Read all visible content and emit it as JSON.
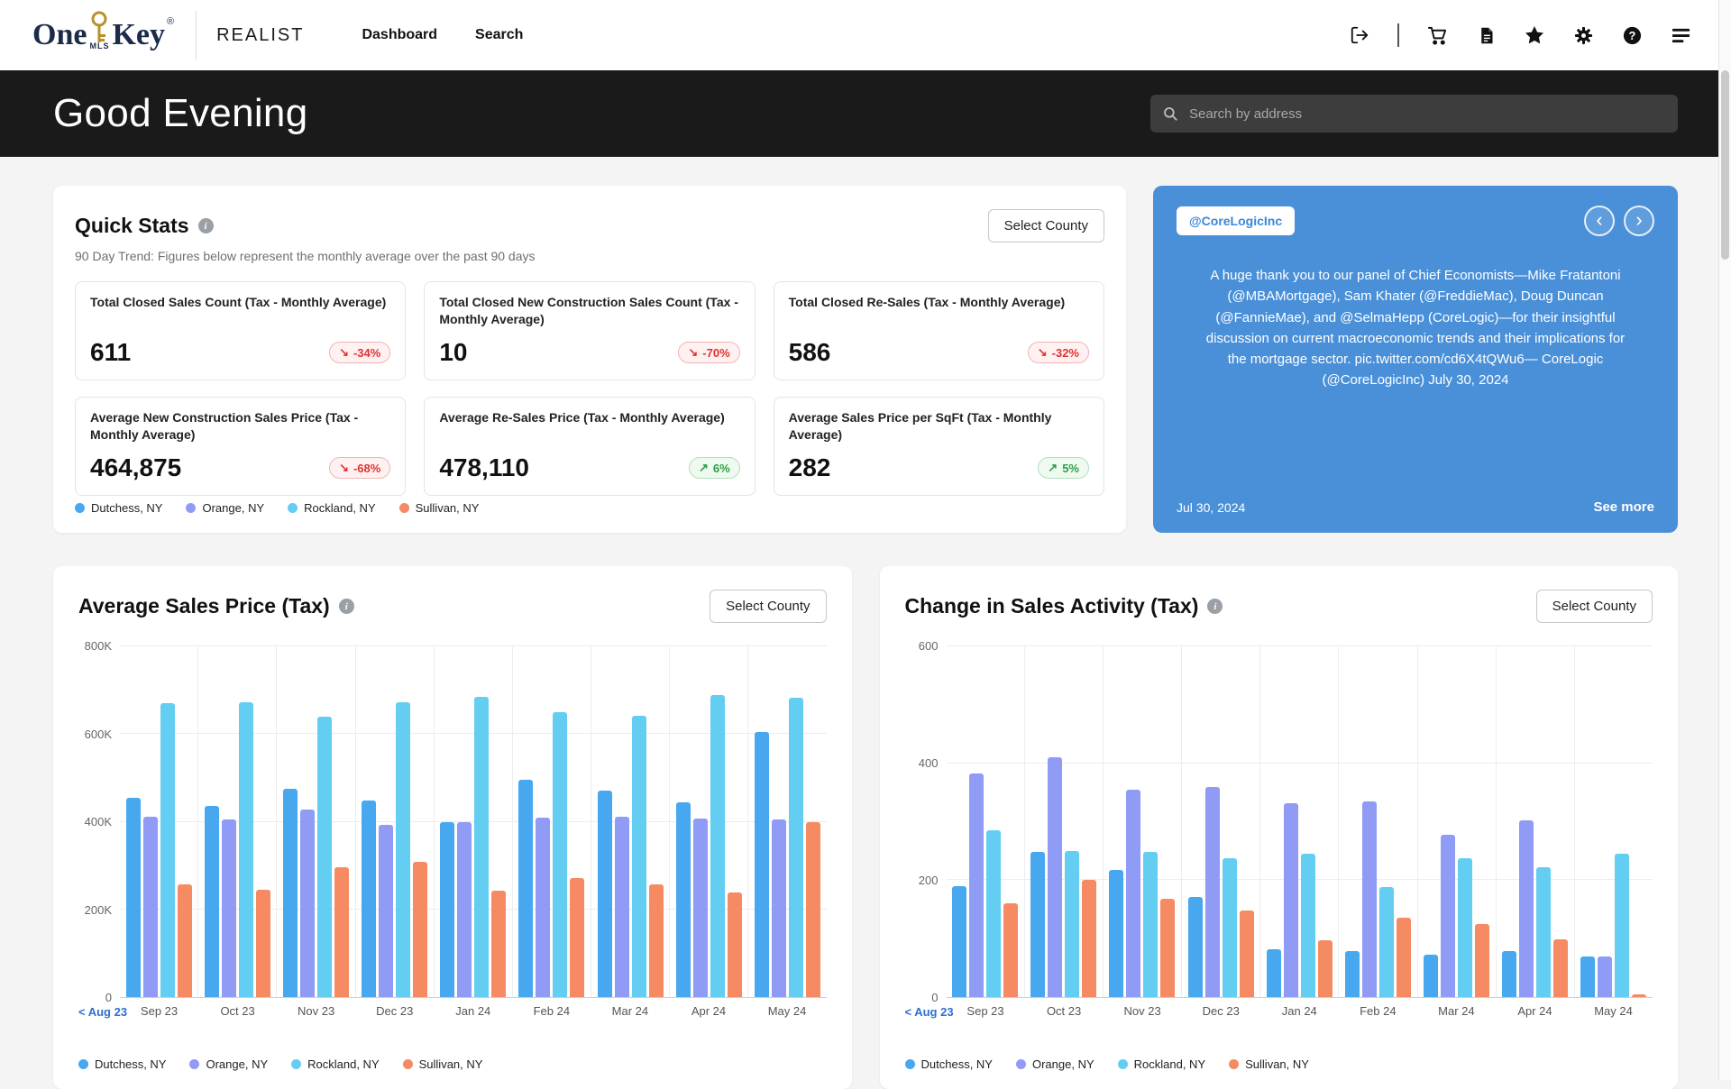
{
  "navbar": {
    "brand": {
      "one": "One",
      "key": "Key",
      "mls": "MLS",
      "registered": "®"
    },
    "app_name": "REALIST",
    "links": [
      {
        "label": "Dashboard"
      },
      {
        "label": "Search"
      }
    ],
    "icons": [
      "logout",
      "cart",
      "document",
      "star",
      "gear",
      "help",
      "reports"
    ]
  },
  "header": {
    "greeting": "Good Evening",
    "search_placeholder": "Search by address"
  },
  "labels": {
    "select_county": "Select County",
    "prev_link": "< Aug 23",
    "see_more": "See more"
  },
  "counties": [
    {
      "name": "Dutchess, NY",
      "color": "#47a8f0"
    },
    {
      "name": "Orange, NY",
      "color": "#8f9bf5"
    },
    {
      "name": "Rockland, NY",
      "color": "#63cdf2"
    },
    {
      "name": "Sullivan, NY",
      "color": "#f58a63"
    }
  ],
  "quick_stats": {
    "title": "Quick Stats",
    "subtitle": "90 Day Trend: Figures below represent the monthly average over the past 90 days",
    "cards": [
      {
        "label": "Total Closed Sales Count (Tax - Monthly Average)",
        "value": "611",
        "change": "-34%",
        "direction": "down"
      },
      {
        "label": "Total Closed New Construction Sales Count (Tax - Monthly Average)",
        "value": "10",
        "change": "-70%",
        "direction": "down"
      },
      {
        "label": "Total Closed Re-Sales (Tax - Monthly Average)",
        "value": "586",
        "change": "-32%",
        "direction": "down"
      },
      {
        "label": "Average New Construction Sales Price (Tax - Monthly Average)",
        "value": "464,875",
        "change": "-68%",
        "direction": "down"
      },
      {
        "label": "Average Re-Sales Price (Tax - Monthly Average)",
        "value": "478,110",
        "change": "6%",
        "direction": "up"
      },
      {
        "label": "Average Sales Price per SqFt (Tax - Monthly Average)",
        "value": "282",
        "change": "5%",
        "direction": "up"
      }
    ]
  },
  "tweet": {
    "handle": "@CoreLogicInc",
    "text": "A huge thank you to our panel of Chief Economists—Mike Fratantoni (@MBAMortgage), Sam Khater (@FreddieMac), Doug Duncan (@FannieMae), and @SelmaHepp (CoreLogic)—for their insightful discussion on current macroeconomic trends and their implications for the mortgage sector. pic.twitter.com/cd6X4tQWu6— CoreLogic (@CoreLogicInc) July 30, 2024",
    "date": "Jul 30, 2024",
    "bg_color": "#4a90d9"
  },
  "chart_data": [
    {
      "type": "bar",
      "title": "Average Sales Price (Tax)",
      "categories": [
        "Sep 23",
        "Oct 23",
        "Nov 23",
        "Dec 23",
        "Jan 24",
        "Feb 24",
        "Mar 24",
        "Apr 24",
        "May 24"
      ],
      "series": [
        {
          "name": "Dutchess, NY",
          "values": [
            455000,
            435000,
            475000,
            448000,
            398000,
            495000,
            472000,
            445000,
            605000
          ]
        },
        {
          "name": "Orange, NY",
          "values": [
            412000,
            405000,
            428000,
            392000,
            398000,
            410000,
            412000,
            408000,
            405000
          ]
        },
        {
          "name": "Rockland, NY",
          "values": [
            670000,
            672000,
            640000,
            672000,
            685000,
            650000,
            642000,
            688000,
            682000
          ]
        },
        {
          "name": "Sullivan, NY",
          "values": [
            258000,
            245000,
            297000,
            308000,
            243000,
            272000,
            258000,
            238000,
            400000
          ]
        }
      ],
      "ylim": [
        0,
        800000
      ],
      "yticks": [
        0,
        200000,
        400000,
        600000,
        800000
      ],
      "ytick_labels": [
        "0",
        "200K",
        "400K",
        "600K",
        "800K"
      ],
      "grid": true,
      "legend_position": "bottom"
    },
    {
      "type": "bar",
      "title": "Change in Sales Activity (Tax)",
      "categories": [
        "Sep 23",
        "Oct 23",
        "Nov 23",
        "Dec 23",
        "Jan 24",
        "Feb 24",
        "Mar 24",
        "Apr 24",
        "May 24"
      ],
      "series": [
        {
          "name": "Dutchess, NY",
          "values": [
            190,
            248,
            218,
            172,
            82,
            78,
            72,
            78,
            70
          ]
        },
        {
          "name": "Orange, NY",
          "values": [
            382,
            410,
            355,
            360,
            332,
            335,
            278,
            302,
            70
          ]
        },
        {
          "name": "Rockland, NY",
          "values": [
            285,
            250,
            248,
            238,
            245,
            188,
            238,
            222,
            245
          ]
        },
        {
          "name": "Sullivan, NY",
          "values": [
            160,
            200,
            168,
            148,
            97,
            135,
            125,
            98,
            5
          ]
        }
      ],
      "ylim": [
        0,
        600
      ],
      "yticks": [
        0,
        200,
        400,
        600
      ],
      "ytick_labels": [
        "0",
        "200",
        "400",
        "600"
      ],
      "grid": true,
      "legend_position": "bottom"
    }
  ]
}
